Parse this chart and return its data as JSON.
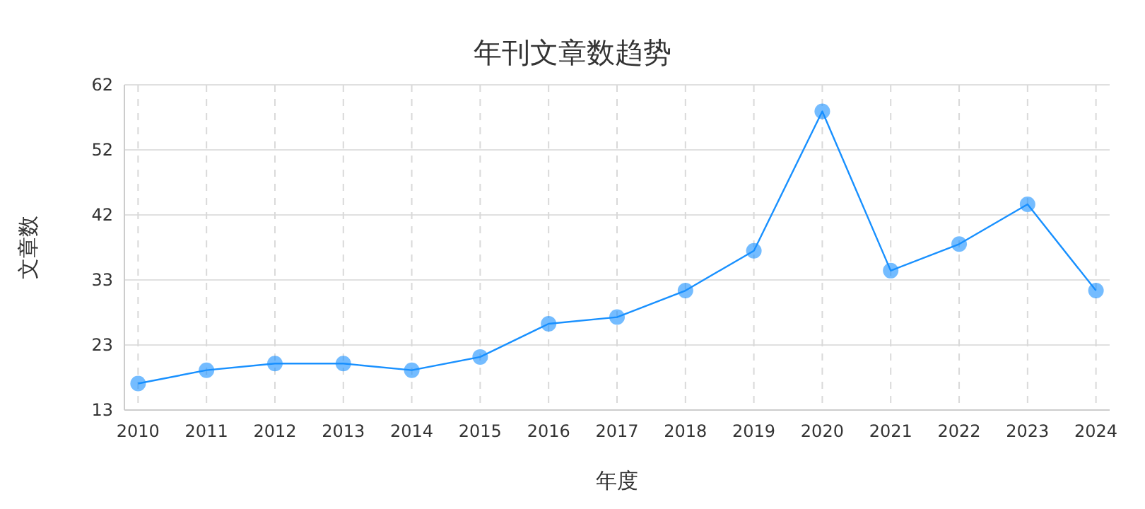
{
  "chart_data": {
    "type": "line",
    "title": "年刊文章数趋势",
    "xlabel": "年度",
    "ylabel": "文章数",
    "categories": [
      "2010",
      "2011",
      "2012",
      "2013",
      "2014",
      "2015",
      "2016",
      "2017",
      "2018",
      "2019",
      "2020",
      "2021",
      "2022",
      "2023",
      "2024"
    ],
    "series": [
      {
        "color": "#1890ff",
        "values": [
          17,
          19,
          20,
          20,
          19,
          21,
          26,
          27,
          31,
          37,
          58,
          34,
          38,
          44,
          31
        ]
      }
    ],
    "ylim": [
      13,
      62
    ],
    "yticks": [
      13,
      {
        "value": 22.8,
        "label": "23"
      },
      {
        "value": 32.6,
        "label": "33"
      },
      {
        "value": 42.4,
        "label": "42"
      },
      {
        "value": 52.2,
        "label": "52"
      },
      62
    ],
    "grid": true,
    "marker": "circle",
    "line_style": "solid"
  }
}
